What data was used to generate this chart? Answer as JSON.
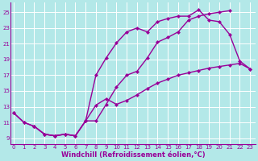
{
  "background_color": "#b3e8e8",
  "grid_color": "#ffffff",
  "line_color": "#990099",
  "markersize": 2.5,
  "linewidth": 1.0,
  "xlabel": "Windchill (Refroidissement éolien,°C)",
  "xlabel_fontsize": 6.0,
  "tick_fontsize": 5.0,
  "ylabel_ticks": [
    9,
    11,
    13,
    15,
    17,
    19,
    21,
    23,
    25
  ],
  "xlabel_ticks": [
    0,
    1,
    2,
    3,
    4,
    5,
    6,
    7,
    8,
    9,
    10,
    11,
    12,
    13,
    14,
    15,
    16,
    17,
    18,
    19,
    20,
    21,
    22,
    23
  ],
  "xlim": [
    -0.3,
    23.5
  ],
  "ylim": [
    8.2,
    26.2
  ],
  "line1_x": [
    0,
    1,
    2,
    3,
    4,
    5,
    6,
    7,
    8,
    9,
    10,
    11,
    12,
    13,
    14,
    15,
    16,
    17,
    18,
    19,
    20,
    21
  ],
  "line1_y": [
    12.2,
    11.0,
    10.5,
    9.5,
    9.3,
    9.5,
    9.3,
    11.2,
    11.2,
    13.3,
    15.5,
    17.0,
    17.5,
    19.2,
    21.2,
    21.8,
    22.5,
    24.0,
    24.5,
    24.8,
    25.0,
    25.2
  ],
  "line2_x": [
    2,
    3,
    4,
    5,
    6,
    7,
    8,
    9,
    10,
    11,
    12,
    13,
    14,
    15,
    16,
    17,
    18,
    19,
    20,
    21,
    22,
    23
  ],
  "line2_y": [
    10.5,
    9.5,
    9.3,
    9.5,
    9.3,
    11.2,
    17.0,
    19.2,
    21.1,
    22.5,
    23.0,
    22.5,
    23.8,
    24.2,
    24.5,
    24.5,
    25.3,
    24.0,
    23.8,
    22.2,
    18.8,
    17.8
  ],
  "line3_x": [
    0,
    1,
    2,
    3,
    4,
    5,
    6,
    7,
    8,
    9,
    10,
    11,
    12,
    13,
    14,
    15,
    16,
    17,
    18,
    19,
    20,
    21,
    22,
    23
  ],
  "line3_y": [
    12.2,
    11.0,
    10.5,
    9.5,
    9.3,
    9.5,
    9.3,
    11.2,
    13.2,
    14.0,
    13.3,
    13.8,
    14.5,
    15.3,
    16.0,
    16.5,
    17.0,
    17.3,
    17.6,
    17.9,
    18.1,
    18.3,
    18.5,
    17.8
  ]
}
